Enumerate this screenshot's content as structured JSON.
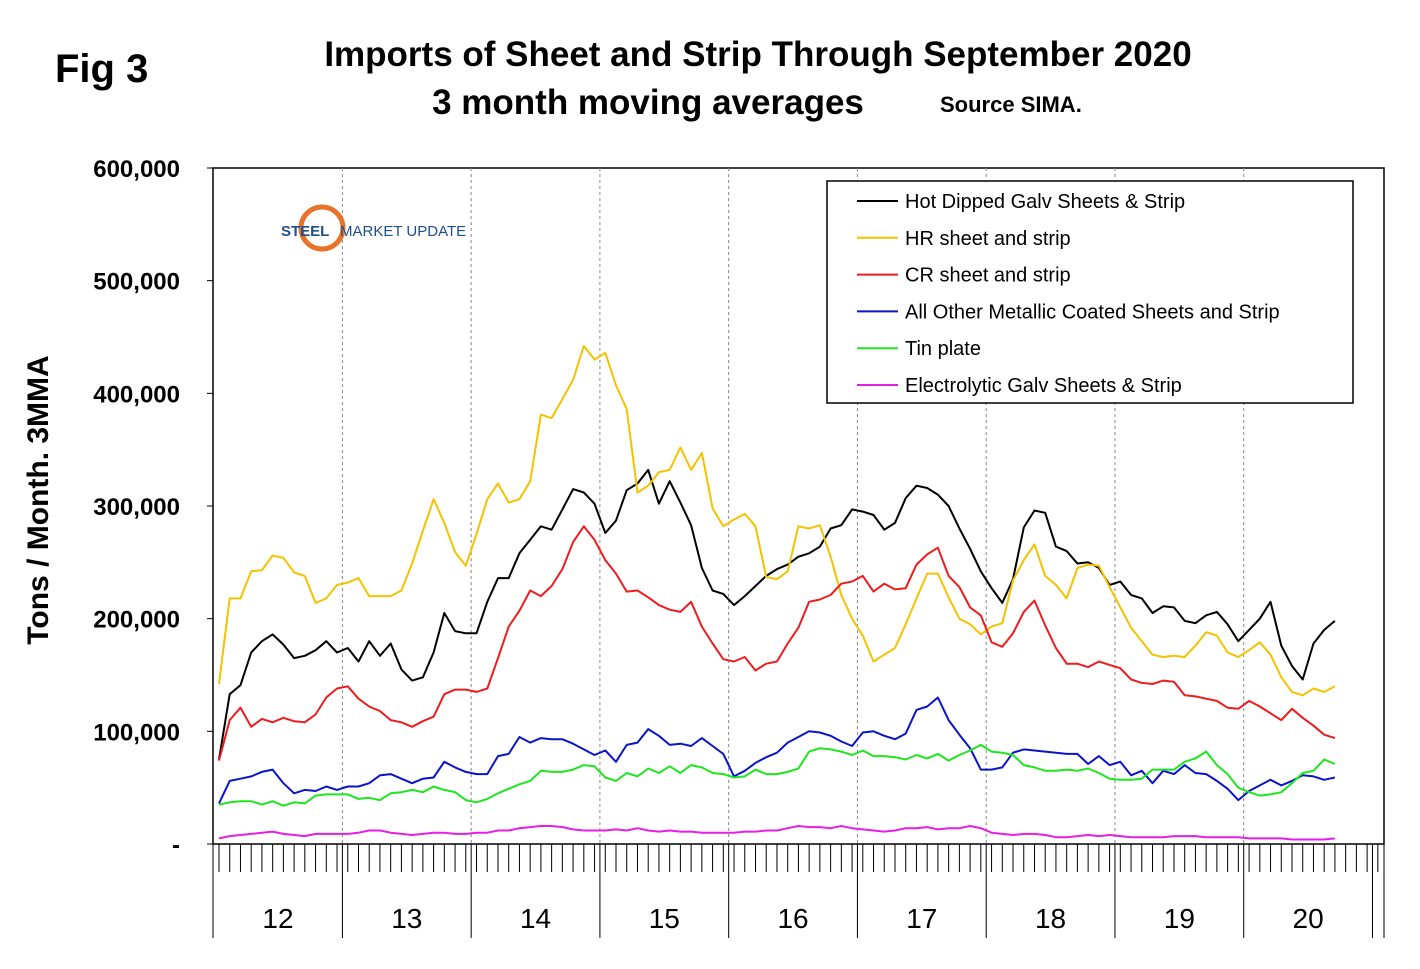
{
  "header": {
    "fig_label": "Fig 3",
    "title": "Imports of Sheet and Strip Through September 2020",
    "subtitle": "3 month moving averages",
    "source": "Source SIMA."
  },
  "logo": {
    "word1": "STEEL",
    "word2": "MARKET UPDATE",
    "accent_color": "#e8722a",
    "color": "#1f4e8c"
  },
  "chart_data": {
    "type": "line",
    "ylabel": "Tons / Month. 3MMA",
    "ylim": [
      0,
      600000
    ],
    "yticks": [
      0,
      100000,
      200000,
      300000,
      400000,
      500000,
      600000
    ],
    "ytick_labels": [
      "-",
      "100,000",
      "200,000",
      "300,000",
      "400,000",
      "500,000",
      "600,000"
    ],
    "year_labels": [
      "12",
      "13",
      "14",
      "15",
      "16",
      "17",
      "18",
      "19",
      "20"
    ],
    "x_start": "2012-01",
    "x_end": "2020-09",
    "grid": "vertical dashed at year boundaries",
    "legend_position": "top-right",
    "series": [
      {
        "name": "Hot Dipped Galv Sheets & Strip",
        "color": "#000000",
        "values": [
          75000,
          133000,
          141000,
          170000,
          180000,
          186000,
          177000,
          165000,
          167000,
          172000,
          180000,
          170000,
          174000,
          162000,
          180000,
          167000,
          178000,
          155000,
          145000,
          148000,
          170000,
          205000,
          189000,
          187000,
          187000,
          215000,
          236000,
          236000,
          258000,
          270000,
          282000,
          279000,
          297000,
          315000,
          312000,
          302000,
          276000,
          287000,
          314000,
          320000,
          332000,
          302000,
          322000,
          303000,
          283000,
          245000,
          225000,
          222000,
          212000,
          220000,
          229000,
          238000,
          244000,
          248000,
          255000,
          258000,
          264000,
          280000,
          283000,
          297000,
          295000,
          292000,
          279000,
          285000,
          307000,
          318000,
          316000,
          310000,
          300000,
          280000,
          262000,
          242000,
          227000,
          214000,
          235000,
          281000,
          296000,
          294000,
          264000,
          260000,
          249000,
          250000,
          245000,
          230000,
          233000,
          221000,
          218000,
          205000,
          211000,
          210000,
          198000,
          196000,
          203000,
          206000,
          195000,
          180000,
          190000,
          200000,
          215000,
          176000,
          158000,
          146000,
          178000,
          190000,
          198000
        ]
      },
      {
        "name": "HR sheet and strip",
        "color": "#f5c200",
        "values": [
          142000,
          218000,
          218000,
          242000,
          243000,
          256000,
          254000,
          241000,
          238000,
          214000,
          218000,
          230000,
          232000,
          236000,
          220000,
          220000,
          220000,
          225000,
          249000,
          278000,
          306000,
          285000,
          259000,
          247000,
          275000,
          306000,
          320000,
          303000,
          306000,
          322000,
          381000,
          378000,
          395000,
          412000,
          442000,
          430000,
          436000,
          407000,
          386000,
          312000,
          318000,
          330000,
          332000,
          352000,
          332000,
          347000,
          298000,
          282000,
          288000,
          293000,
          282000,
          237000,
          235000,
          242000,
          282000,
          280000,
          283000,
          255000,
          221000,
          200000,
          185000,
          162000,
          168000,
          174000,
          195000,
          218000,
          240000,
          240000,
          219000,
          200000,
          195000,
          186000,
          193000,
          196000,
          234000,
          252000,
          266000,
          238000,
          230000,
          218000,
          245000,
          248000,
          247000,
          228000,
          210000,
          192000,
          180000,
          168000,
          166000,
          167000,
          166000,
          176000,
          188000,
          185000,
          170000,
          166000,
          172000,
          179000,
          168000,
          148000,
          135000,
          132000,
          138000,
          135000,
          140000
        ]
      },
      {
        "name": "CR sheet and strip",
        "color": "#ee1c1c",
        "values": [
          74000,
          110000,
          121000,
          104000,
          111000,
          108000,
          112000,
          109000,
          108000,
          115000,
          130000,
          138000,
          140000,
          129000,
          122000,
          118000,
          110000,
          108000,
          104000,
          109000,
          113000,
          133000,
          137000,
          137000,
          135000,
          138000,
          165000,
          193000,
          207000,
          225000,
          220000,
          229000,
          244000,
          268000,
          282000,
          270000,
          252000,
          240000,
          224000,
          225000,
          219000,
          212000,
          208000,
          206000,
          215000,
          193000,
          178000,
          164000,
          162000,
          166000,
          154000,
          160000,
          162000,
          178000,
          192000,
          215000,
          217000,
          221000,
          231000,
          233000,
          238000,
          224000,
          231000,
          226000,
          227000,
          248000,
          257000,
          263000,
          238000,
          228000,
          210000,
          203000,
          179000,
          175000,
          187000,
          206000,
          216000,
          194000,
          174000,
          160000,
          160000,
          157000,
          162000,
          159000,
          156000,
          146000,
          143000,
          142000,
          145000,
          144000,
          132000,
          131000,
          129000,
          127000,
          121000,
          120000,
          127000,
          122000,
          116000,
          110000,
          120000,
          112000,
          105000,
          97000,
          94000
        ]
      },
      {
        "name": "All Other Metallic Coated Sheets and Strip",
        "color": "#0a14c8",
        "values": [
          36000,
          56000,
          58000,
          60000,
          64000,
          66000,
          54000,
          45000,
          48000,
          47000,
          51000,
          48000,
          51000,
          51000,
          54000,
          61000,
          62000,
          58000,
          54000,
          58000,
          59000,
          73000,
          68000,
          64000,
          62000,
          62000,
          78000,
          80000,
          95000,
          90000,
          94000,
          93000,
          93000,
          89000,
          84000,
          79000,
          83000,
          73000,
          88000,
          90000,
          102000,
          96000,
          88000,
          89000,
          87000,
          94000,
          87000,
          80000,
          60000,
          65000,
          72000,
          77000,
          81000,
          90000,
          95000,
          100000,
          99000,
          96000,
          91000,
          87000,
          99000,
          100000,
          96000,
          93000,
          98000,
          119000,
          122000,
          130000,
          110000,
          97000,
          85000,
          66000,
          66000,
          68000,
          81000,
          84000,
          83000,
          82000,
          81000,
          80000,
          80000,
          71000,
          78000,
          70000,
          73000,
          61000,
          65000,
          54000,
          65000,
          62000,
          70000,
          63000,
          62000,
          56000,
          49000,
          39000,
          47000,
          52000,
          57000,
          52000,
          56000,
          61000,
          60000,
          57000,
          59000
        ]
      },
      {
        "name": "Tin plate",
        "color": "#1ee61e",
        "values": [
          35000,
          37000,
          38000,
          38000,
          35000,
          38000,
          34000,
          37000,
          36000,
          43000,
          44000,
          44000,
          44000,
          40000,
          41000,
          39000,
          45000,
          46000,
          48000,
          46000,
          51000,
          48000,
          46000,
          39000,
          37000,
          40000,
          45000,
          49000,
          53000,
          56000,
          65000,
          64000,
          64000,
          66000,
          70000,
          69000,
          59000,
          56000,
          63000,
          60000,
          67000,
          63000,
          69000,
          63000,
          70000,
          68000,
          63000,
          62000,
          59000,
          60000,
          66000,
          62000,
          62000,
          64000,
          67000,
          82000,
          85000,
          84000,
          82000,
          79000,
          83000,
          78000,
          78000,
          77000,
          75000,
          79000,
          76000,
          80000,
          74000,
          79000,
          83000,
          88000,
          82000,
          81000,
          79000,
          70000,
          68000,
          65000,
          65000,
          66000,
          65000,
          67000,
          63000,
          58000,
          57000,
          57000,
          58000,
          66000,
          66000,
          66000,
          73000,
          76000,
          82000,
          70000,
          62000,
          50000,
          46000,
          43000,
          44000,
          46000,
          54000,
          63000,
          65000,
          75000,
          71000
        ]
      },
      {
        "name": "Electrolytic Galv Sheets & Strip",
        "color": "#e61ee6",
        "values": [
          5000,
          7000,
          8000,
          9000,
          10000,
          11000,
          9000,
          8000,
          7000,
          9000,
          9000,
          9000,
          9000,
          10000,
          12000,
          12000,
          10000,
          9000,
          8000,
          9000,
          10000,
          10000,
          9000,
          9000,
          10000,
          10000,
          12000,
          12000,
          14000,
          15000,
          16000,
          16000,
          15000,
          13000,
          12000,
          12000,
          12000,
          13000,
          12000,
          14000,
          12000,
          11000,
          12000,
          11000,
          11000,
          10000,
          10000,
          10000,
          10000,
          11000,
          11000,
          12000,
          12000,
          14000,
          16000,
          15000,
          15000,
          14000,
          16000,
          14000,
          13000,
          12000,
          11000,
          12000,
          14000,
          14000,
          15000,
          13000,
          14000,
          14000,
          16000,
          14000,
          10000,
          9000,
          8000,
          9000,
          9000,
          8000,
          6000,
          6000,
          7000,
          8000,
          7000,
          8000,
          7000,
          6000,
          6000,
          6000,
          6000,
          7000,
          7000,
          7000,
          6000,
          6000,
          6000,
          6000,
          5000,
          5000,
          5000,
          5000,
          4000,
          4000,
          4000,
          4000,
          5000
        ]
      }
    ]
  }
}
